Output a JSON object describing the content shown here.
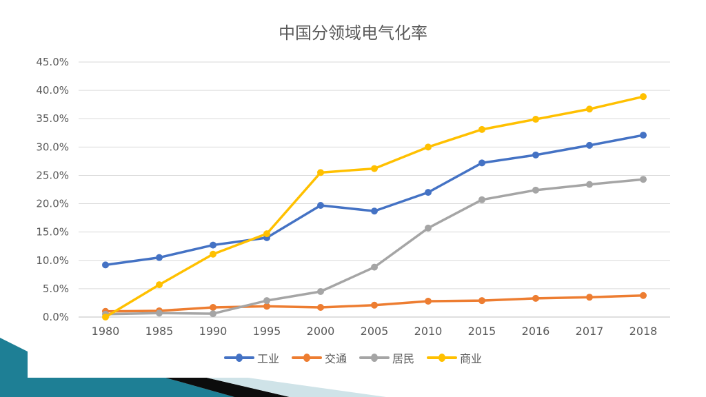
{
  "chart_data": {
    "type": "line",
    "title": "中国分领域电气化率",
    "xlabel": "",
    "ylabel": "",
    "categories": [
      "1980",
      "1985",
      "1990",
      "1995",
      "2000",
      "2005",
      "2010",
      "2015",
      "2016",
      "2017",
      "2018"
    ],
    "y_ticks": [
      "0.0%",
      "5.0%",
      "10.0%",
      "15.0%",
      "20.0%",
      "25.0%",
      "30.0%",
      "35.0%",
      "40.0%",
      "45.0%"
    ],
    "ylim": [
      0,
      45
    ],
    "grid": true,
    "legend": "bottom",
    "series": [
      {
        "name": "工业",
        "color": "#4472C4",
        "values": [
          9.2,
          10.5,
          12.7,
          14.0,
          19.7,
          18.7,
          22.0,
          27.2,
          28.6,
          30.3,
          32.1
        ]
      },
      {
        "name": "交通",
        "color": "#ED7D31",
        "values": [
          1.0,
          1.1,
          1.7,
          1.9,
          1.7,
          2.1,
          2.8,
          2.9,
          3.3,
          3.5,
          3.8
        ]
      },
      {
        "name": "居民",
        "color": "#A5A5A5",
        "values": [
          0.5,
          0.7,
          0.6,
          2.9,
          4.5,
          8.8,
          15.7,
          20.7,
          22.4,
          23.4,
          24.3
        ]
      },
      {
        "name": "商业",
        "color": "#FFC000",
        "values": [
          0.0,
          5.7,
          11.1,
          14.7,
          25.5,
          26.2,
          30.0,
          33.1,
          34.9,
          36.7,
          38.9
        ]
      }
    ]
  }
}
